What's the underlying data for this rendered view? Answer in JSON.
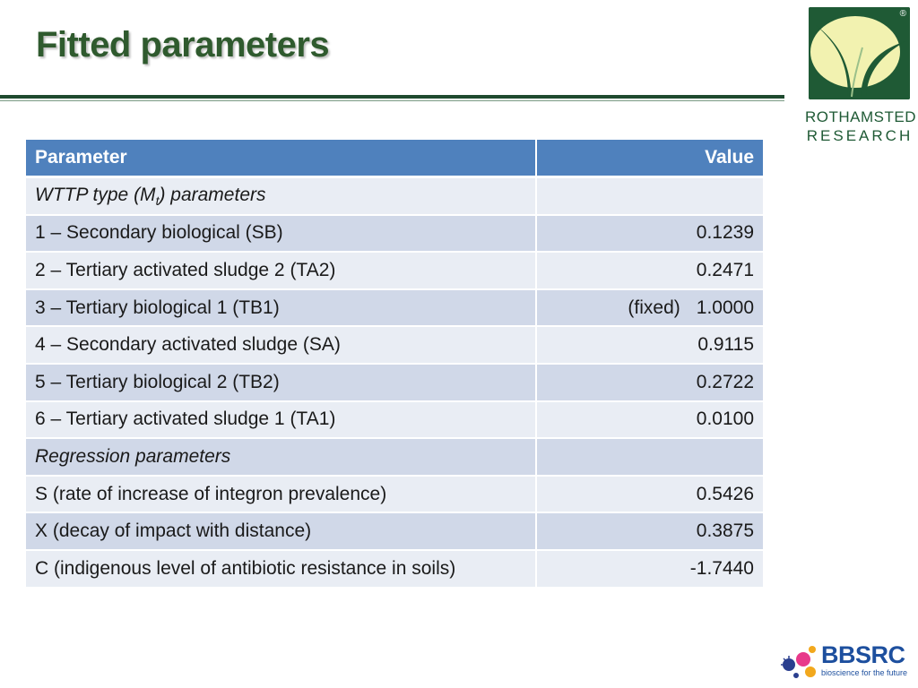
{
  "slide": {
    "title": "Fitted parameters"
  },
  "logo_rothamsted": {
    "line1": "ROTHAMSTED",
    "line2": "RESEARCH",
    "reg_mark": "®",
    "colors": {
      "box": "#1f5a35",
      "leaf": "#f2f2b0"
    }
  },
  "logo_bbsrc": {
    "word": "BBSRC",
    "tagline": "bioscience for the future"
  },
  "table": {
    "headers": {
      "parameter": "Parameter",
      "value": "Value"
    },
    "section1": {
      "prefix": "WTTP type (M",
      "subscript": "t",
      "suffix": ") parameters"
    },
    "rows1": [
      {
        "name": "1 – Secondary biological (SB)",
        "value": "0.1239",
        "note": ""
      },
      {
        "name": "2 – Tertiary activated sludge 2 (TA2)",
        "value": "0.2471",
        "note": ""
      },
      {
        "name": "3 – Tertiary biological 1 (TB1)",
        "value": "1.0000",
        "note": "(fixed)"
      },
      {
        "name": "4 – Secondary activated sludge (SA)",
        "value": "0.9115",
        "note": ""
      },
      {
        "name": "5 – Tertiary biological 2 (TB2)",
        "value": "0.2722",
        "note": ""
      },
      {
        "name": "6 – Tertiary activated sludge 1 (TA1)",
        "value": "0.0100",
        "note": ""
      }
    ],
    "section2": "Regression parameters",
    "rows2": [
      {
        "name": "S (rate of increase of integron prevalence)",
        "value": "0.5426"
      },
      {
        "name": "X (decay of impact with distance)",
        "value": "0.3875"
      },
      {
        "name": "C (indigenous level of antibiotic resistance in soils)",
        "value": "-1.7440"
      }
    ],
    "colors": {
      "header": "#4f81bd",
      "row_dark": "#d0d8e8",
      "row_light": "#e9edf4"
    }
  }
}
